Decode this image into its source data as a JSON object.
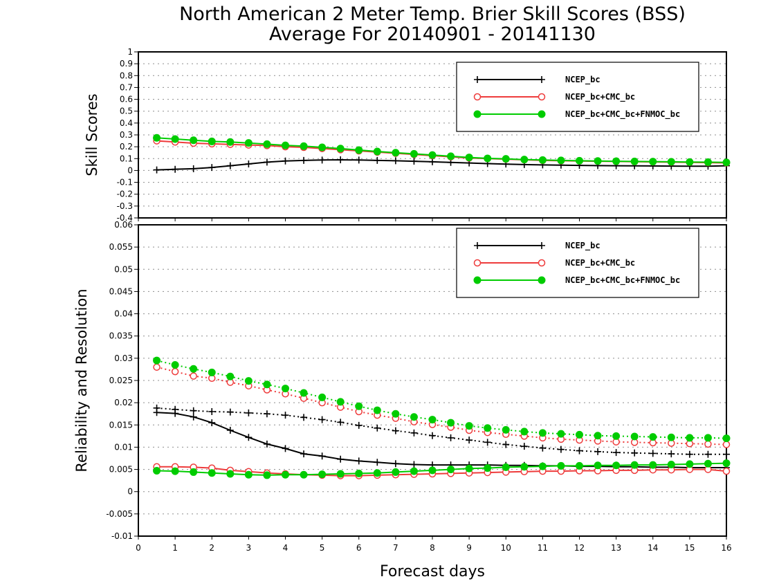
{
  "title_line1": "North American 2 Meter Temp. Brier Skill Scores (BSS)",
  "title_line2": "Average For 20140901 - 20141130",
  "colors": {
    "NCEP_bc": "#000000",
    "NCEP_bc+CMC_bc": "#ee3b3b",
    "NCEP_bc+CMC_bc+FNMOC_bc": "#00cc00"
  },
  "chart_data": [
    {
      "type": "line",
      "ylabel": "Skill Scores",
      "xlabel": "",
      "xlim": [
        0,
        16
      ],
      "ylim": [
        -0.4,
        1
      ],
      "xticks": [
        0,
        1,
        2,
        3,
        4,
        5,
        6,
        7,
        8,
        9,
        10,
        11,
        12,
        13,
        14,
        15,
        16
      ],
      "yticks": [
        -0.4,
        -0.3,
        -0.2,
        -0.1,
        0,
        0.1,
        0.2,
        0.3,
        0.4,
        0.5,
        0.6,
        0.7,
        0.8,
        0.9,
        1
      ],
      "ytick_labels": [
        "-0.4",
        "-0.3",
        "-0.2",
        "-0.1",
        "0",
        "0.1",
        "0.2",
        "0.3",
        "0.4",
        "0.5",
        "0.6",
        "0.7",
        "0.8",
        "0.9",
        "1"
      ],
      "grid": true,
      "legend": "top-right",
      "x": [
        0.5,
        1,
        1.5,
        2,
        2.5,
        3,
        3.5,
        4,
        4.5,
        5,
        5.5,
        6,
        6.5,
        7,
        7.5,
        8,
        8.5,
        9,
        9.5,
        10,
        10.5,
        11,
        11.5,
        12,
        12.5,
        13,
        13.5,
        14,
        14.5,
        15,
        15.5,
        16
      ],
      "series": [
        {
          "name": "NCEP_bc",
          "marker": "plus",
          "style": "solid",
          "values": [
            0.005,
            0.01,
            0.015,
            0.025,
            0.04,
            0.055,
            0.07,
            0.08,
            0.085,
            0.088,
            0.09,
            0.088,
            0.085,
            0.082,
            0.078,
            0.073,
            0.068,
            0.063,
            0.058,
            0.054,
            0.05,
            0.047,
            0.045,
            0.043,
            0.041,
            0.04,
            0.039,
            0.038,
            0.037,
            0.036,
            0.036,
            0.04
          ]
        },
        {
          "name": "NCEP_bc+CMC_bc",
          "marker": "circle-open",
          "style": "solid",
          "values": [
            0.25,
            0.24,
            0.23,
            0.225,
            0.22,
            0.215,
            0.21,
            0.2,
            0.195,
            0.185,
            0.175,
            0.165,
            0.155,
            0.145,
            0.135,
            0.125,
            0.115,
            0.105,
            0.1,
            0.095,
            0.09,
            0.085,
            0.082,
            0.08,
            0.078,
            0.076,
            0.074,
            0.072,
            0.07,
            0.068,
            0.066,
            0.064
          ]
        },
        {
          "name": "NCEP_bc+CMC_bc+FNMOC_bc",
          "marker": "circle-filled",
          "style": "solid",
          "values": [
            0.275,
            0.265,
            0.255,
            0.245,
            0.24,
            0.232,
            0.222,
            0.212,
            0.205,
            0.195,
            0.185,
            0.172,
            0.16,
            0.15,
            0.14,
            0.13,
            0.12,
            0.11,
            0.102,
            0.098,
            0.092,
            0.088,
            0.085,
            0.082,
            0.08,
            0.078,
            0.076,
            0.075,
            0.073,
            0.071,
            0.07,
            0.068
          ]
        }
      ]
    },
    {
      "type": "line",
      "ylabel": "Reliability and Resolution",
      "xlabel": "Forecast days",
      "xlim": [
        0,
        16
      ],
      "ylim": [
        -0.01,
        0.06
      ],
      "xticks": [
        0,
        1,
        2,
        3,
        4,
        5,
        6,
        7,
        8,
        9,
        10,
        11,
        12,
        13,
        14,
        15,
        16
      ],
      "yticks": [
        -0.01,
        -0.005,
        0,
        0.005,
        0.01,
        0.015,
        0.02,
        0.025,
        0.03,
        0.035,
        0.04,
        0.045,
        0.05,
        0.055,
        0.06
      ],
      "ytick_labels": [
        "-0.01",
        "-0.005",
        "0",
        "0.005",
        "0.01",
        "0.015",
        "0.02",
        "0.025",
        "0.03",
        "0.035",
        "0.04",
        "0.045",
        "0.05",
        "0.055",
        "0.06"
      ],
      "grid": true,
      "legend": "top-right",
      "x": [
        0.5,
        1,
        1.5,
        2,
        2.5,
        3,
        3.5,
        4,
        4.5,
        5,
        5.5,
        6,
        6.5,
        7,
        7.5,
        8,
        8.5,
        9,
        9.5,
        10,
        10.5,
        11,
        11.5,
        12,
        12.5,
        13,
        13.5,
        14,
        14.5,
        15,
        15.5,
        16
      ],
      "series": [
        {
          "name": "NCEP_bc",
          "legend_entry": true,
          "metric": "reliability",
          "marker": "plus",
          "style": "solid",
          "values": [
            0.0178,
            0.0176,
            0.0168,
            0.0155,
            0.0138,
            0.0122,
            0.0107,
            0.0097,
            0.0085,
            0.008,
            0.0073,
            0.0069,
            0.0066,
            0.0063,
            0.0061,
            0.006,
            0.006,
            0.006,
            0.006,
            0.0059,
            0.0059,
            0.0058,
            0.0058,
            0.0057,
            0.0057,
            0.0056,
            0.0056,
            0.0055,
            0.0055,
            0.0054,
            0.0054,
            0.0054
          ]
        },
        {
          "name": "NCEP_bc",
          "legend_entry": false,
          "metric": "resolution",
          "marker": "plus",
          "style": "dotted",
          "values": [
            0.0188,
            0.0185,
            0.0182,
            0.018,
            0.0179,
            0.0177,
            0.0175,
            0.0172,
            0.0167,
            0.0162,
            0.0156,
            0.0149,
            0.0143,
            0.0137,
            0.0132,
            0.0126,
            0.0121,
            0.0116,
            0.0111,
            0.0106,
            0.0102,
            0.0098,
            0.0095,
            0.0092,
            0.009,
            0.0088,
            0.0087,
            0.0086,
            0.0085,
            0.0084,
            0.0084,
            0.0084
          ]
        },
        {
          "name": "NCEP_bc+CMC_bc",
          "legend_entry": true,
          "metric": "reliability",
          "marker": "circle-open",
          "style": "solid",
          "values": [
            0.0056,
            0.0056,
            0.0055,
            0.0053,
            0.0048,
            0.0045,
            0.0042,
            0.004,
            0.0038,
            0.0037,
            0.0036,
            0.0036,
            0.0037,
            0.0038,
            0.0039,
            0.004,
            0.0041,
            0.0042,
            0.0043,
            0.0044,
            0.0045,
            0.0046,
            0.0046,
            0.0047,
            0.0047,
            0.0048,
            0.0048,
            0.0049,
            0.0049,
            0.005,
            0.005,
            0.0046
          ]
        },
        {
          "name": "NCEP_bc+CMC_bc",
          "legend_entry": false,
          "metric": "resolution",
          "marker": "circle-open",
          "style": "dotted",
          "values": [
            0.028,
            0.027,
            0.026,
            0.0255,
            0.0246,
            0.0238,
            0.0229,
            0.022,
            0.021,
            0.02,
            0.019,
            0.018,
            0.0172,
            0.0165,
            0.0157,
            0.0151,
            0.0145,
            0.0138,
            0.0133,
            0.0129,
            0.0125,
            0.0121,
            0.0118,
            0.0116,
            0.0114,
            0.0112,
            0.0111,
            0.011,
            0.0109,
            0.0108,
            0.0107,
            0.0106
          ]
        },
        {
          "name": "NCEP_bc+CMC_bc+FNMOC_bc",
          "legend_entry": true,
          "metric": "reliability",
          "marker": "circle-filled",
          "style": "solid",
          "values": [
            0.0047,
            0.0046,
            0.0044,
            0.0042,
            0.004,
            0.0038,
            0.0037,
            0.0038,
            0.0038,
            0.0039,
            0.004,
            0.0041,
            0.0042,
            0.0044,
            0.0046,
            0.0048,
            0.005,
            0.0052,
            0.0053,
            0.0055,
            0.0056,
            0.0057,
            0.0058,
            0.0058,
            0.0059,
            0.0059,
            0.006,
            0.006,
            0.0061,
            0.0062,
            0.0063,
            0.0064
          ]
        },
        {
          "name": "NCEP_bc+CMC_bc+FNMOC_bc",
          "legend_entry": false,
          "metric": "resolution",
          "marker": "circle-filled",
          "style": "dotted",
          "values": [
            0.0295,
            0.0285,
            0.0276,
            0.0268,
            0.0259,
            0.0249,
            0.0241,
            0.0232,
            0.0222,
            0.0212,
            0.0202,
            0.0192,
            0.0183,
            0.0175,
            0.0168,
            0.0162,
            0.0155,
            0.0148,
            0.0143,
            0.0139,
            0.0135,
            0.0132,
            0.013,
            0.0128,
            0.0126,
            0.0125,
            0.0124,
            0.0123,
            0.0122,
            0.0121,
            0.0121,
            0.012
          ]
        }
      ]
    }
  ]
}
